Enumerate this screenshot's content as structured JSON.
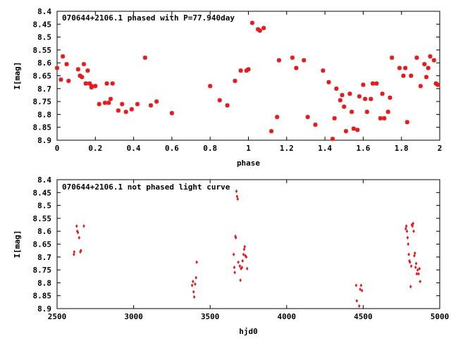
{
  "chart_data": [
    {
      "type": "scatter",
      "title": "070644+2106.1 phased with P=77.940day",
      "xlabel": "phase",
      "ylabel": "I[mag]",
      "xlim": [
        0,
        2
      ],
      "ylim": [
        8.9,
        8.4
      ],
      "y_inverted": true,
      "grid": false,
      "x_ticks": [
        "0",
        "0.2",
        "0.4",
        "0.6",
        "0.8",
        "1",
        "1.2",
        "1.4",
        "1.6",
        "1.8",
        "2"
      ],
      "y_ticks": [
        "8.4",
        "8.45",
        "8.5",
        "8.55",
        "8.6",
        "8.65",
        "8.7",
        "8.75",
        "8.8",
        "8.85",
        "8.9"
      ],
      "marker_color": "#e41a1c",
      "series": [
        {
          "x": [
            0.0,
            0.02,
            0.03,
            0.05,
            0.06,
            0.11,
            0.12,
            0.13,
            0.14,
            0.15,
            0.16,
            0.17,
            0.18,
            0.18,
            0.2,
            0.22,
            0.25,
            0.26,
            0.27,
            0.28,
            0.29,
            0.32,
            0.34,
            0.36,
            0.39,
            0.42,
            0.46,
            0.49,
            0.52,
            0.6,
            0.8,
            0.85,
            0.89,
            0.93,
            0.96,
            0.99,
            1.0,
            1.02,
            1.05,
            1.06,
            1.08,
            1.12,
            1.15,
            1.16,
            1.23,
            1.25,
            1.29,
            1.31,
            1.35,
            1.39,
            1.42,
            1.44,
            1.45,
            1.46,
            1.48,
            1.49,
            1.5,
            1.51,
            1.53,
            1.54,
            1.55,
            1.57,
            1.58,
            1.6,
            1.61,
            1.62,
            1.64,
            1.65,
            1.67,
            1.69,
            1.7,
            1.71,
            1.73,
            1.74,
            1.75,
            1.79,
            1.81,
            1.82,
            1.83,
            1.85,
            1.88,
            1.9,
            1.92,
            1.93,
            1.94,
            1.95,
            1.97,
            1.98,
            1.99
          ],
          "y": [
            8.62,
            8.665,
            8.575,
            8.605,
            8.67,
            8.625,
            8.65,
            8.655,
            8.605,
            8.68,
            8.63,
            8.68,
            8.695,
            8.69,
            8.69,
            8.76,
            8.755,
            8.68,
            8.755,
            8.74,
            8.68,
            8.785,
            8.76,
            8.79,
            8.78,
            8.76,
            8.58,
            8.765,
            8.75,
            8.795,
            8.69,
            8.745,
            8.765,
            8.67,
            8.63,
            8.63,
            8.625,
            8.445,
            8.47,
            8.475,
            8.465,
            8.865,
            8.81,
            8.59,
            8.58,
            8.62,
            8.59,
            8.81,
            8.84,
            8.63,
            8.675,
            8.895,
            8.815,
            8.7,
            8.745,
            8.725,
            8.77,
            8.865,
            8.72,
            8.79,
            8.855,
            8.86,
            8.73,
            8.685,
            8.74,
            8.79,
            8.74,
            8.68,
            8.68,
            8.815,
            8.72,
            8.815,
            8.79,
            8.735,
            8.58,
            8.62,
            8.65,
            8.62,
            8.83,
            8.65,
            8.58,
            8.69,
            8.605,
            8.655,
            8.62,
            8.575,
            8.59,
            8.68,
            8.685
          ]
        }
      ]
    },
    {
      "type": "scatter",
      "title": "070644+2106.1 not phased light curve",
      "xlabel": "hjd0",
      "ylabel": "I[mag]",
      "xlim": [
        2500,
        5000
      ],
      "ylim": [
        8.9,
        8.4
      ],
      "y_inverted": true,
      "grid": false,
      "x_ticks": [
        "2500",
        "3000",
        "3500",
        "4000",
        "4500",
        "5000"
      ],
      "y_ticks": [
        "8.4",
        "8.45",
        "8.5",
        "8.55",
        "8.6",
        "8.65",
        "8.7",
        "8.75",
        "8.8",
        "8.85",
        "8.9"
      ],
      "marker_color": "#e41a1c",
      "series": [
        {
          "x": [
            2610,
            2612,
            2628,
            2632,
            2636,
            2644,
            2652,
            2656,
            2675,
            3382,
            3388,
            3392,
            3396,
            3402,
            3408,
            3412,
            3654,
            3658,
            3661,
            3665,
            3668,
            3672,
            3676,
            3680,
            3684,
            3694,
            3698,
            3702,
            3708,
            3712,
            3718,
            3722,
            3726,
            3730,
            3736,
            3742,
            4454,
            4458,
            4474,
            4480,
            4486,
            4492,
            4778,
            4782,
            4786,
            4790,
            4794,
            4798,
            4802,
            4806,
            4810,
            4814,
            4818,
            4822,
            4826,
            4830,
            4834,
            4838,
            4842,
            4846,
            4850,
            4856,
            4862,
            4868,
            4872
          ],
          "y": [
            8.69,
            8.68,
            8.58,
            8.6,
            8.605,
            8.625,
            8.68,
            8.675,
            8.58,
            8.81,
            8.795,
            8.835,
            8.855,
            8.805,
            8.78,
            8.72,
            8.69,
            8.74,
            8.76,
            8.62,
            8.625,
            8.445,
            8.465,
            8.475,
            8.72,
            8.735,
            8.79,
            8.745,
            8.74,
            8.715,
            8.69,
            8.67,
            8.66,
            8.695,
            8.7,
            8.745,
            8.81,
            8.87,
            8.89,
            8.825,
            8.81,
            8.83,
            8.59,
            8.58,
            8.6,
            8.625,
            8.65,
            8.69,
            8.715,
            8.72,
            8.815,
            8.735,
            8.575,
            8.58,
            8.57,
            8.6,
            8.695,
            8.685,
            8.74,
            8.725,
            8.765,
            8.75,
            8.765,
            8.745,
            8.795
          ]
        }
      ]
    }
  ]
}
